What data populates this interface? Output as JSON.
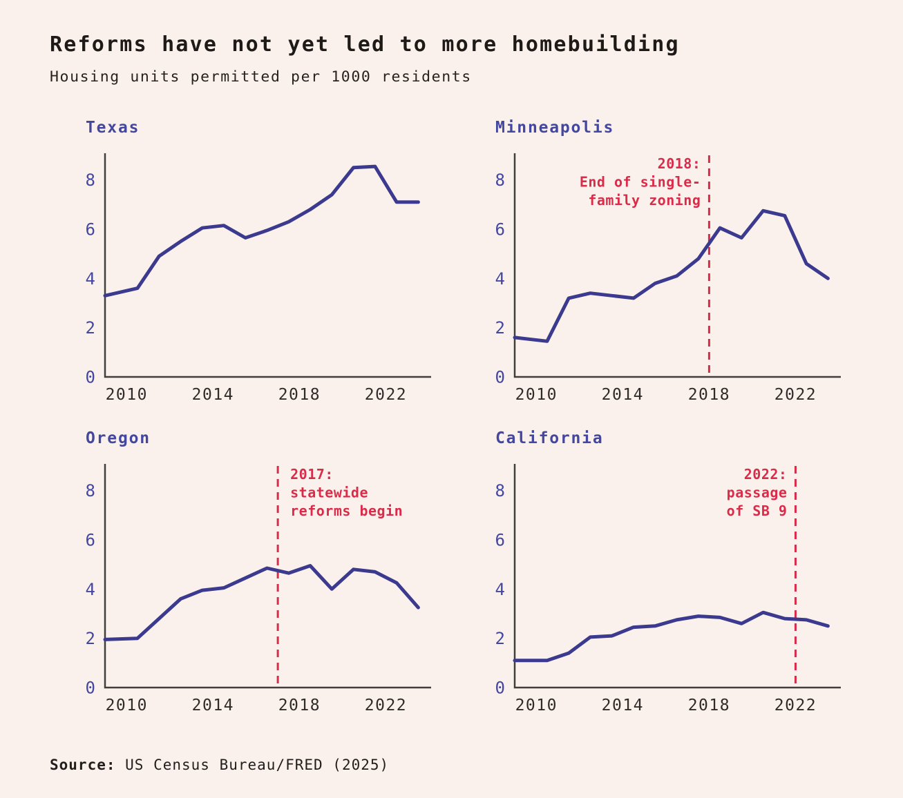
{
  "header": {
    "title": "Reforms have not yet led to more homebuilding",
    "subtitle": "Housing units permitted per 1000 residents"
  },
  "source": {
    "label": "Source:",
    "text": " US Census Bureau/FRED (2025)"
  },
  "colors": {
    "background": "#fbf1ec",
    "line": "#3b3a8e",
    "accent_text": "#4347a0",
    "annotation": "#d92b4a",
    "axis": "#403d3b",
    "xtick_text": "#2e2b29",
    "title_text": "#1d1a18"
  },
  "chart_data": [
    {
      "type": "line",
      "title": "Texas",
      "x": [
        2009,
        2010,
        2011,
        2012,
        2013,
        2014,
        2015,
        2016,
        2017,
        2018,
        2019,
        2020,
        2021,
        2022,
        2023
      ],
      "values": [
        3.3,
        3.6,
        4.9,
        5.5,
        6.05,
        6.15,
        5.65,
        5.95,
        6.3,
        6.8,
        7.4,
        8.5,
        8.55,
        7.1,
        7.1
      ],
      "xticks": [
        2010,
        2014,
        2018,
        2022
      ],
      "yticks": [
        0,
        2,
        4,
        6,
        8
      ],
      "xlim": [
        2009,
        2024
      ],
      "ylim": [
        0,
        9
      ],
      "grid": false,
      "annotation": null
    },
    {
      "type": "line",
      "title": "Minneapolis",
      "x": [
        2009,
        2010,
        2011,
        2012,
        2013,
        2014,
        2015,
        2016,
        2017,
        2018,
        2019,
        2020,
        2021,
        2022,
        2023
      ],
      "values": [
        1.6,
        1.45,
        3.2,
        3.4,
        3.3,
        3.2,
        3.8,
        4.1,
        4.8,
        6.05,
        5.65,
        6.75,
        6.55,
        4.6,
        4.0
      ],
      "xticks": [
        2010,
        2014,
        2018,
        2022
      ],
      "yticks": [
        0,
        2,
        4,
        6,
        8
      ],
      "xlim": [
        2009,
        2024
      ],
      "ylim": [
        0,
        9
      ],
      "grid": false,
      "annotation": {
        "year": 2018,
        "align": "right",
        "lines": [
          "2018:",
          "End of single-",
          "family zoning"
        ]
      }
    },
    {
      "type": "line",
      "title": "Oregon",
      "x": [
        2009,
        2010,
        2011,
        2012,
        2013,
        2014,
        2015,
        2016,
        2017,
        2018,
        2019,
        2020,
        2021,
        2022,
        2023
      ],
      "values": [
        1.95,
        2.0,
        2.8,
        3.6,
        3.95,
        4.05,
        4.45,
        4.85,
        4.65,
        4.95,
        4.0,
        4.8,
        4.7,
        4.25,
        3.25
      ],
      "xticks": [
        2010,
        2014,
        2018,
        2022
      ],
      "yticks": [
        0,
        2,
        4,
        6,
        8
      ],
      "xlim": [
        2009,
        2024
      ],
      "ylim": [
        0,
        9
      ],
      "grid": false,
      "annotation": {
        "year": 2017,
        "align": "left",
        "lines": [
          "2017:",
          "statewide",
          "reforms begin"
        ]
      }
    },
    {
      "type": "line",
      "title": "California",
      "x": [
        2009,
        2010,
        2011,
        2012,
        2013,
        2014,
        2015,
        2016,
        2017,
        2018,
        2019,
        2020,
        2021,
        2022,
        2023
      ],
      "values": [
        1.1,
        1.1,
        1.4,
        2.05,
        2.1,
        2.45,
        2.5,
        2.75,
        2.9,
        2.85,
        2.6,
        3.05,
        2.8,
        2.75,
        2.5
      ],
      "xticks": [
        2010,
        2014,
        2018,
        2022
      ],
      "yticks": [
        0,
        2,
        4,
        6,
        8
      ],
      "xlim": [
        2009,
        2024
      ],
      "ylim": [
        0,
        9
      ],
      "grid": false,
      "annotation": {
        "year": 2022,
        "align": "right",
        "lines": [
          "2022:",
          "passage",
          "of SB 9"
        ]
      }
    }
  ]
}
